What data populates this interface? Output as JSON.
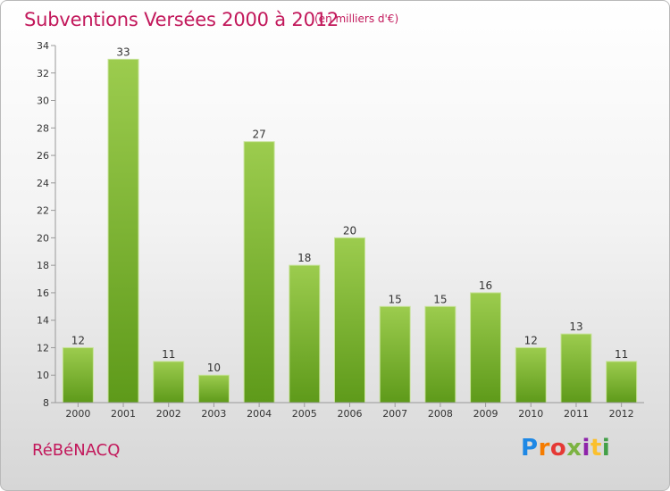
{
  "title": "Subventions Versées 2000 à 2012",
  "subtitle": "(en milliers d'€)",
  "commune": "RéBéNACQ",
  "logo": {
    "text": "Proxiti",
    "colors": [
      "#1e88e5",
      "#f57c00",
      "#e53935",
      "#7cb342",
      "#8e24aa",
      "#fbc02d",
      "#43a047"
    ]
  },
  "colors": {
    "title": "#c2185b",
    "bar_top": "#9ccc4e",
    "bar_bottom": "#5e9a1a"
  },
  "chart_data": {
    "type": "bar",
    "categories": [
      "2000",
      "2001",
      "2002",
      "2003",
      "2004",
      "2005",
      "2006",
      "2007",
      "2008",
      "2009",
      "2010",
      "2011",
      "2012"
    ],
    "values": [
      12,
      33,
      11,
      10,
      27,
      18,
      20,
      15,
      15,
      16,
      12,
      13,
      11
    ],
    "title": "Subventions Versées 2000 à 2012",
    "xlabel": "",
    "ylabel": "",
    "ylim": [
      8,
      34
    ],
    "yticks": [
      8,
      10,
      12,
      14,
      16,
      18,
      20,
      22,
      24,
      26,
      28,
      30,
      32,
      34
    ],
    "grid": false,
    "legend": "none"
  }
}
